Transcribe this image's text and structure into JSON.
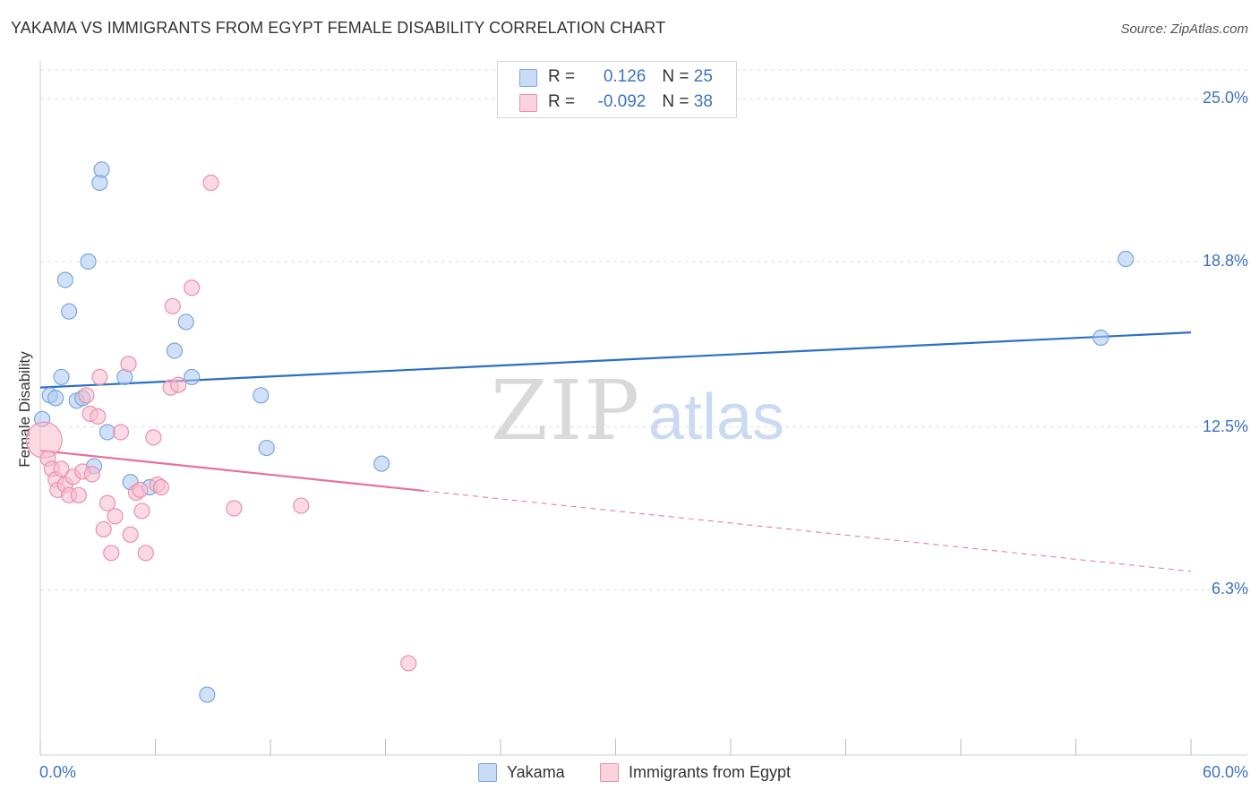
{
  "title": "YAKAMA VS IMMIGRANTS FROM EGYPT FEMALE DISABILITY CORRELATION CHART",
  "source": "Source: ZipAtlas.com",
  "watermark": {
    "zip": "ZIP",
    "atlas": "atlas"
  },
  "legend": {
    "rows": [
      {
        "r_label": "R = ",
        "r_value": "0.126",
        "n_label": "N = ",
        "n_value": "25"
      },
      {
        "r_label": "R = ",
        "r_value": "-0.092",
        "n_label": "N = ",
        "n_value": "38"
      }
    ]
  },
  "bottom_legend": {
    "yakama": "Yakama",
    "egypt": "Immigrants from Egypt"
  },
  "colors": {
    "yakama_fill": "#aac8f0",
    "yakama_stroke": "#7aa6e0",
    "yakama_line": "#2a6fc9",
    "egypt_fill": "#f8bccd",
    "egypt_stroke": "#ec8fab",
    "egypt_line": "#e8709a",
    "tick_text": "#3d72c4",
    "grid": "#dddddd"
  },
  "chart_data": {
    "type": "scatter",
    "title": "YAKAMA VS IMMIGRANTS FROM EGYPT FEMALE DISABILITY CORRELATION CHART",
    "xlabel": "",
    "ylabel": "Female Disability",
    "xlim": [
      0,
      60
    ],
    "ylim": [
      0,
      26.1
    ],
    "x_tick_labels": [
      "0.0%",
      "60.0%"
    ],
    "y_ticks": [
      6.3,
      12.5,
      18.8,
      25.0
    ],
    "y_tick_labels": [
      "6.3%",
      "12.5%",
      "18.8%",
      "25.0%"
    ],
    "grid": true,
    "series": [
      {
        "name": "Yakama",
        "R": 0.126,
        "N": 25,
        "trend": {
          "x": [
            0,
            60
          ],
          "y": [
            14.0,
            16.1
          ],
          "dashed_from_x": null
        },
        "points": [
          {
            "x": 0.1,
            "y": 12.8
          },
          {
            "x": 0.5,
            "y": 13.7
          },
          {
            "x": 0.8,
            "y": 13.6
          },
          {
            "x": 1.1,
            "y": 14.4
          },
          {
            "x": 1.3,
            "y": 18.1
          },
          {
            "x": 1.5,
            "y": 16.9
          },
          {
            "x": 1.9,
            "y": 13.5
          },
          {
            "x": 2.2,
            "y": 13.6
          },
          {
            "x": 2.5,
            "y": 18.8
          },
          {
            "x": 2.8,
            "y": 11.0
          },
          {
            "x": 3.1,
            "y": 21.8
          },
          {
            "x": 3.2,
            "y": 22.3
          },
          {
            "x": 3.5,
            "y": 12.3
          },
          {
            "x": 4.4,
            "y": 14.4
          },
          {
            "x": 4.7,
            "y": 10.4
          },
          {
            "x": 5.7,
            "y": 10.2
          },
          {
            "x": 7.0,
            "y": 15.4
          },
          {
            "x": 7.6,
            "y": 16.5
          },
          {
            "x": 7.9,
            "y": 14.4
          },
          {
            "x": 8.7,
            "y": 2.3
          },
          {
            "x": 11.5,
            "y": 13.7
          },
          {
            "x": 11.8,
            "y": 11.7
          },
          {
            "x": 17.8,
            "y": 11.1
          },
          {
            "x": 55.3,
            "y": 15.9
          },
          {
            "x": 56.6,
            "y": 18.9
          }
        ]
      },
      {
        "name": "Immigrants from Egypt",
        "R": -0.092,
        "N": 38,
        "trend": {
          "x": [
            0,
            60
          ],
          "y": [
            11.6,
            7.0
          ],
          "dashed_from_x": 20
        },
        "points": [
          {
            "x": 0.2,
            "y": 12.0,
            "big": true
          },
          {
            "x": 0.4,
            "y": 11.3
          },
          {
            "x": 0.6,
            "y": 10.9
          },
          {
            "x": 0.8,
            "y": 10.5
          },
          {
            "x": 0.9,
            "y": 10.1
          },
          {
            "x": 1.1,
            "y": 10.9
          },
          {
            "x": 1.3,
            "y": 10.3
          },
          {
            "x": 1.5,
            "y": 9.9
          },
          {
            "x": 1.7,
            "y": 10.6
          },
          {
            "x": 2.0,
            "y": 9.9
          },
          {
            "x": 2.2,
            "y": 10.8
          },
          {
            "x": 2.4,
            "y": 13.7
          },
          {
            "x": 2.6,
            "y": 13.0
          },
          {
            "x": 2.7,
            "y": 10.7
          },
          {
            "x": 3.0,
            "y": 12.9
          },
          {
            "x": 3.1,
            "y": 14.4
          },
          {
            "x": 3.3,
            "y": 8.6
          },
          {
            "x": 3.5,
            "y": 9.6
          },
          {
            "x": 3.7,
            "y": 7.7
          },
          {
            "x": 3.9,
            "y": 9.1
          },
          {
            "x": 4.2,
            "y": 12.3
          },
          {
            "x": 4.6,
            "y": 14.9
          },
          {
            "x": 4.7,
            "y": 8.4
          },
          {
            "x": 5.0,
            "y": 10.0
          },
          {
            "x": 5.2,
            "y": 10.1
          },
          {
            "x": 5.3,
            "y": 9.3
          },
          {
            "x": 5.5,
            "y": 7.7
          },
          {
            "x": 5.9,
            "y": 12.1
          },
          {
            "x": 6.1,
            "y": 10.3
          },
          {
            "x": 6.3,
            "y": 10.2
          },
          {
            "x": 6.8,
            "y": 14.0
          },
          {
            "x": 6.9,
            "y": 17.1
          },
          {
            "x": 7.2,
            "y": 14.1
          },
          {
            "x": 7.9,
            "y": 17.8
          },
          {
            "x": 8.9,
            "y": 21.8
          },
          {
            "x": 10.1,
            "y": 9.4
          },
          {
            "x": 13.6,
            "y": 9.5
          },
          {
            "x": 19.2,
            "y": 3.5
          }
        ]
      }
    ]
  }
}
